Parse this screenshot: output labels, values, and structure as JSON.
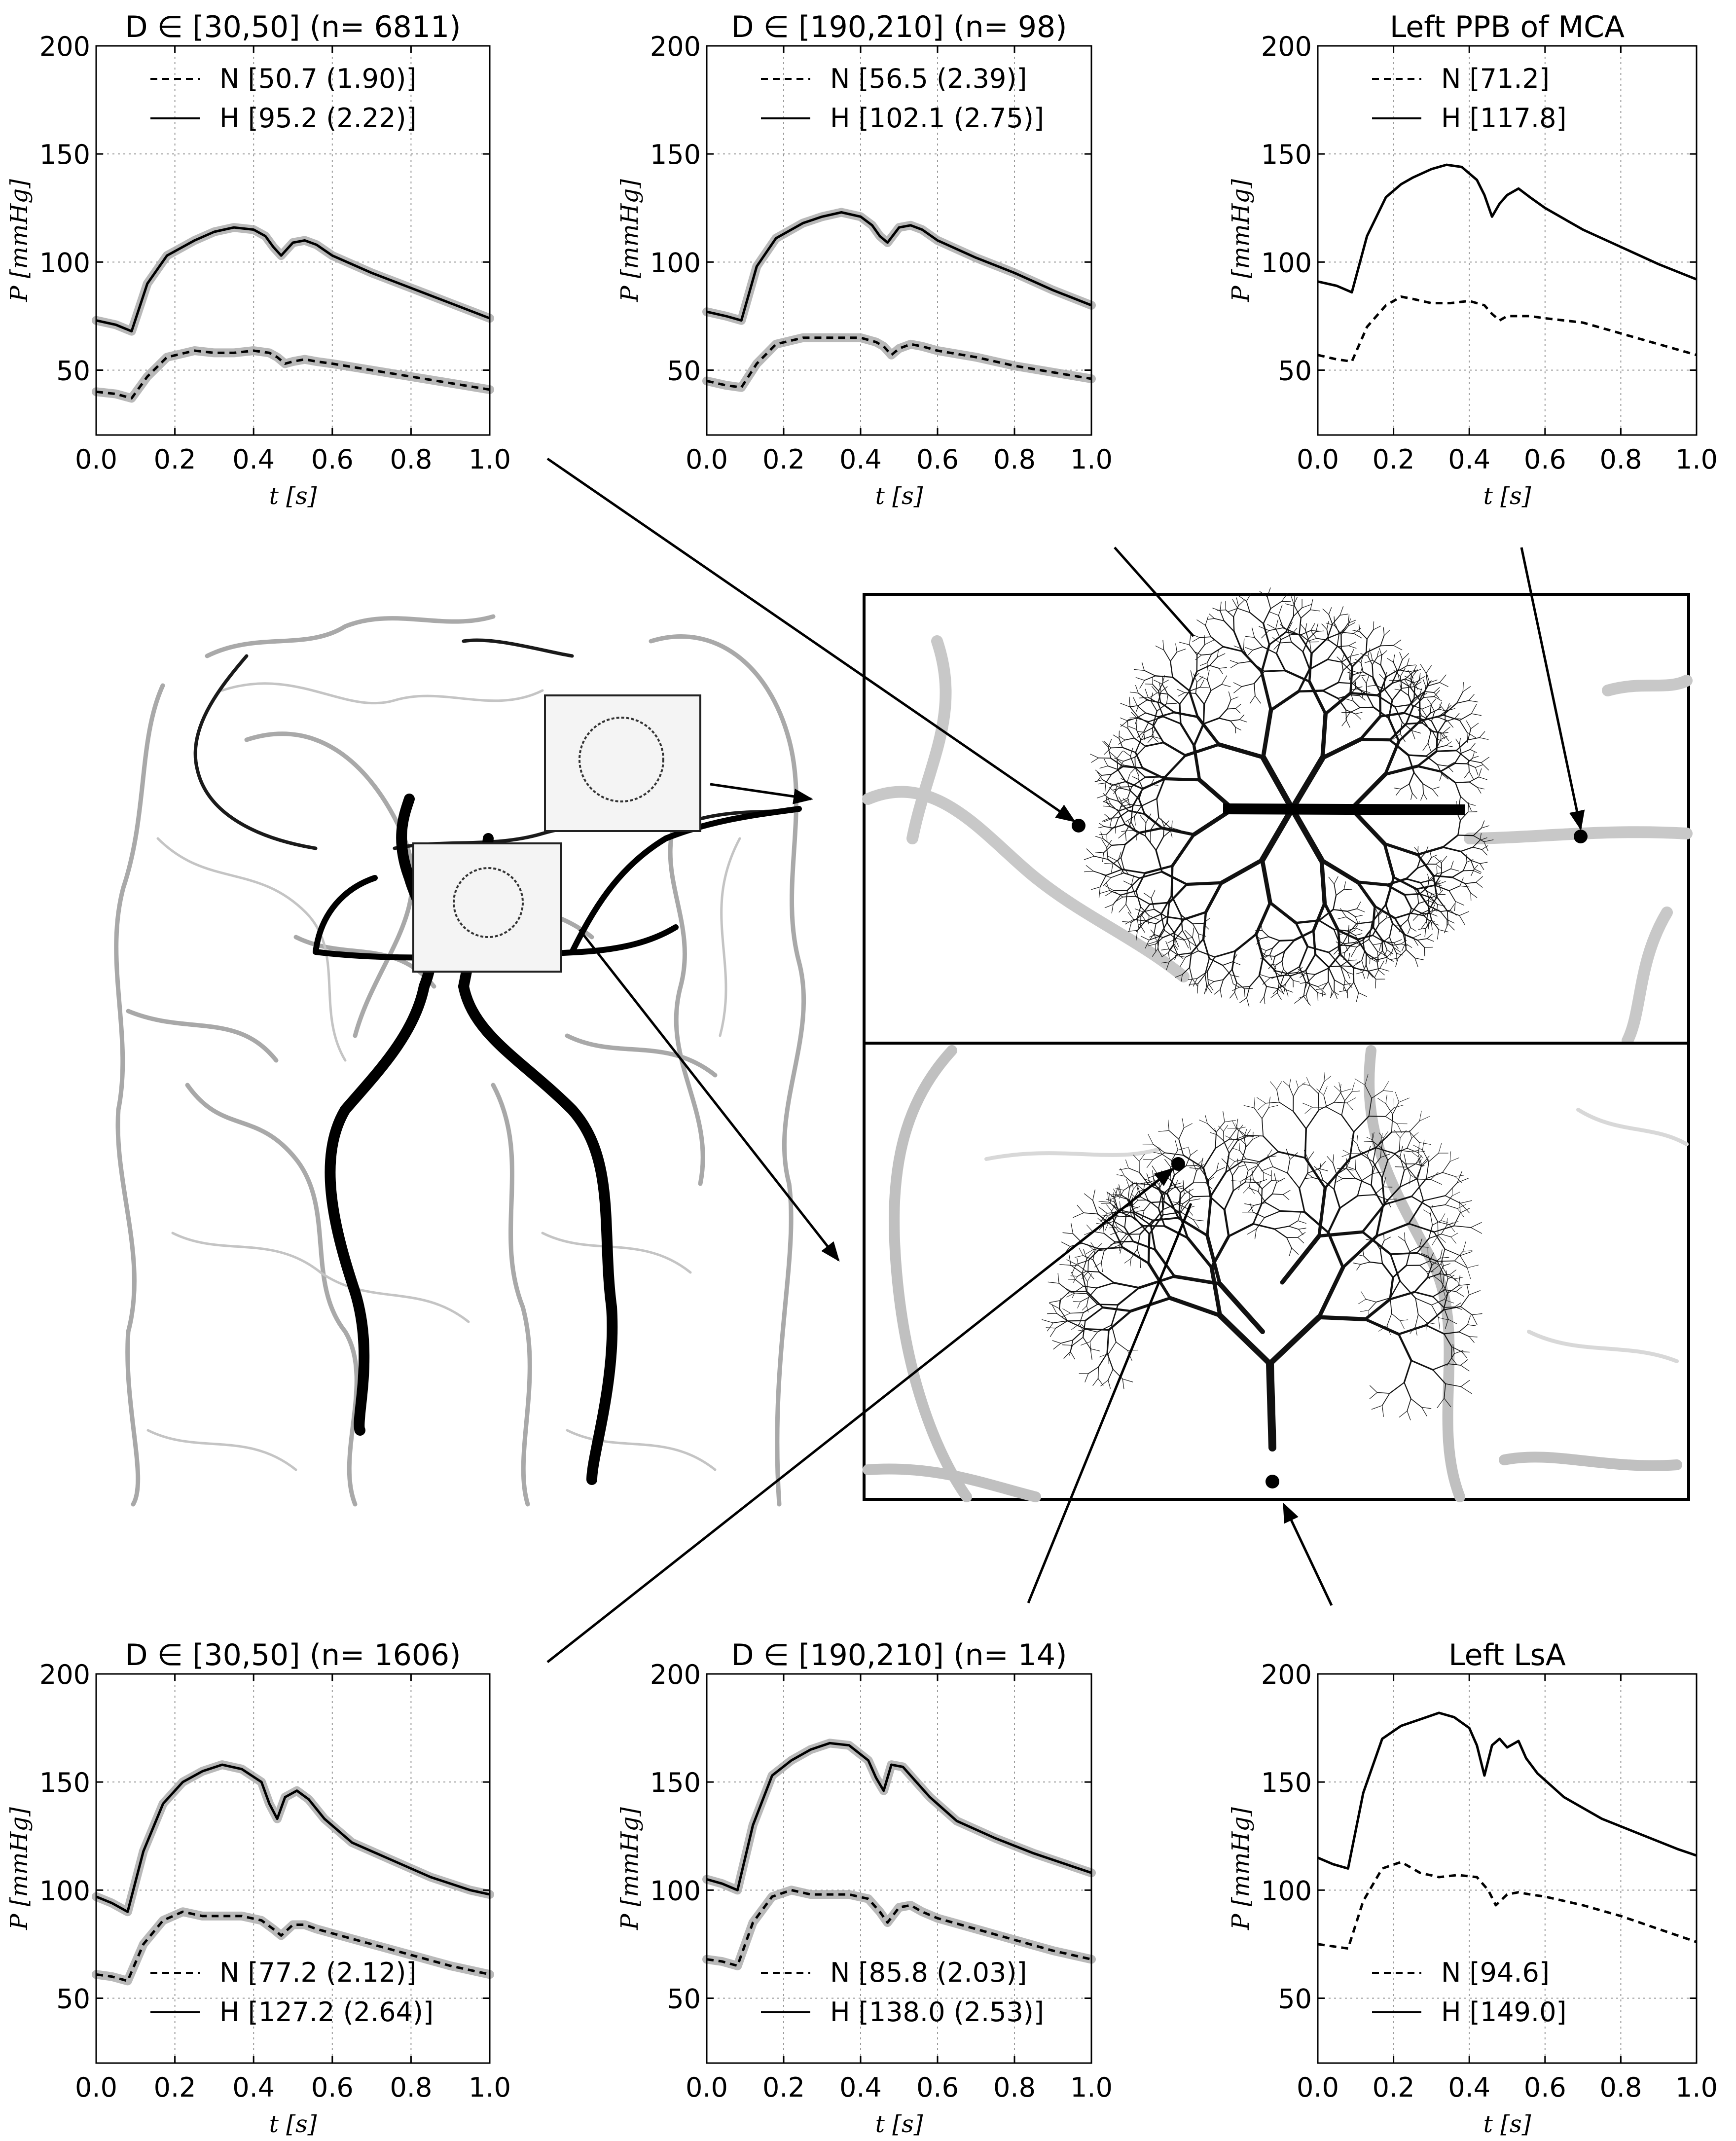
{
  "axis_labels": {
    "x": "t [s]",
    "y": "P [mmHg]"
  },
  "chart_data": [
    {
      "type": "line",
      "title": "D ∈ [30,50] (n= 6811)",
      "xlabel": "t [s]",
      "ylabel": "P [mmHg]",
      "xlim": [
        0.0,
        1.0
      ],
      "ylim": [
        20,
        200
      ],
      "xticks": [
        "0.0",
        "0.2",
        "0.4",
        "0.6",
        "0.8",
        "1.0"
      ],
      "yticks": [
        "50",
        "100",
        "150",
        "200"
      ],
      "grid": true,
      "legend_position": "top",
      "band": true,
      "legend": [
        "N [50.7 (1.90)]",
        "H [95.2 (2.22)]"
      ],
      "series": [
        {
          "name": "N [50.7 (1.90)]",
          "style": "dashed",
          "x": [
            0,
            0.05,
            0.09,
            0.13,
            0.18,
            0.25,
            0.3,
            0.35,
            0.4,
            0.44,
            0.46,
            0.48,
            0.5,
            0.53,
            0.56,
            0.6,
            0.7,
            0.8,
            0.9,
            1.0
          ],
          "y": [
            40,
            39,
            37,
            47,
            56,
            59,
            58,
            58,
            59,
            58,
            56,
            53,
            54,
            55,
            54,
            53,
            50,
            47,
            44,
            41
          ]
        },
        {
          "name": "H [95.2 (2.22)]",
          "style": "solid",
          "x": [
            0,
            0.05,
            0.09,
            0.13,
            0.18,
            0.25,
            0.3,
            0.35,
            0.4,
            0.43,
            0.45,
            0.47,
            0.5,
            0.53,
            0.56,
            0.6,
            0.7,
            0.8,
            0.9,
            1.0
          ],
          "y": [
            73,
            71,
            68,
            90,
            103,
            110,
            114,
            116,
            115,
            112,
            107,
            103,
            109,
            110,
            108,
            103,
            95,
            88,
            81,
            74
          ]
        }
      ]
    },
    {
      "type": "line",
      "title": "D ∈ [190,210] (n= 98)",
      "xlabel": "t [s]",
      "ylabel": "P [mmHg]",
      "xlim": [
        0.0,
        1.0
      ],
      "ylim": [
        20,
        200
      ],
      "xticks": [
        "0.0",
        "0.2",
        "0.4",
        "0.6",
        "0.8",
        "1.0"
      ],
      "yticks": [
        "50",
        "100",
        "150",
        "200"
      ],
      "grid": true,
      "legend_position": "top",
      "band": true,
      "legend": [
        "N [56.5 (2.39)]",
        "H [102.1 (2.75)]"
      ],
      "series": [
        {
          "name": "N [56.5 (2.39)]",
          "style": "dashed",
          "x": [
            0,
            0.05,
            0.09,
            0.13,
            0.18,
            0.25,
            0.3,
            0.35,
            0.4,
            0.44,
            0.46,
            0.48,
            0.5,
            0.53,
            0.56,
            0.6,
            0.7,
            0.8,
            0.9,
            1.0
          ],
          "y": [
            45,
            43,
            42,
            53,
            62,
            65,
            65,
            65,
            65,
            63,
            61,
            57,
            60,
            62,
            61,
            59,
            56,
            52,
            49,
            46
          ]
        },
        {
          "name": "H [102.1 (2.75)]",
          "style": "solid",
          "x": [
            0,
            0.05,
            0.09,
            0.13,
            0.18,
            0.25,
            0.3,
            0.35,
            0.4,
            0.43,
            0.45,
            0.47,
            0.5,
            0.53,
            0.56,
            0.6,
            0.7,
            0.8,
            0.9,
            1.0
          ],
          "y": [
            77,
            75,
            73,
            98,
            111,
            118,
            121,
            123,
            121,
            117,
            112,
            109,
            116,
            117,
            115,
            110,
            102,
            95,
            87,
            80
          ]
        }
      ]
    },
    {
      "type": "line",
      "title": "Left PPB of MCA",
      "xlabel": "t [s]",
      "ylabel": "P [mmHg]",
      "xlim": [
        0.0,
        1.0
      ],
      "ylim": [
        20,
        200
      ],
      "xticks": [
        "0.0",
        "0.2",
        "0.4",
        "0.6",
        "0.8",
        "1.0"
      ],
      "yticks": [
        "50",
        "100",
        "150",
        "200"
      ],
      "grid": true,
      "legend_position": "top",
      "band": false,
      "legend": [
        "N [71.2]",
        "H [117.8]"
      ],
      "series": [
        {
          "name": "N [71.2]",
          "style": "dashed",
          "x": [
            0,
            0.05,
            0.09,
            0.13,
            0.18,
            0.22,
            0.25,
            0.3,
            0.35,
            0.4,
            0.44,
            0.46,
            0.48,
            0.5,
            0.53,
            0.56,
            0.6,
            0.7,
            0.8,
            0.9,
            1.0
          ],
          "y": [
            57,
            55,
            54,
            70,
            80,
            84,
            83,
            81,
            81,
            82,
            80,
            76,
            73,
            75,
            75,
            75,
            74,
            72,
            67,
            62,
            57
          ]
        },
        {
          "name": "H [117.8]",
          "style": "solid",
          "x": [
            0,
            0.05,
            0.09,
            0.13,
            0.18,
            0.22,
            0.25,
            0.3,
            0.34,
            0.38,
            0.42,
            0.44,
            0.46,
            0.48,
            0.5,
            0.53,
            0.56,
            0.6,
            0.7,
            0.8,
            0.9,
            1.0
          ],
          "y": [
            91,
            89,
            86,
            112,
            130,
            136,
            139,
            143,
            145,
            144,
            138,
            131,
            121,
            127,
            131,
            134,
            130,
            125,
            115,
            107,
            99,
            92
          ]
        }
      ]
    },
    {
      "type": "line",
      "title": "D ∈ [30,50] (n= 1606)",
      "xlabel": "t [s]",
      "ylabel": "P [mmHg]",
      "xlim": [
        0.0,
        1.0
      ],
      "ylim": [
        20,
        200
      ],
      "xticks": [
        "0.0",
        "0.2",
        "0.4",
        "0.6",
        "0.8",
        "1.0"
      ],
      "yticks": [
        "50",
        "100",
        "150",
        "200"
      ],
      "grid": true,
      "legend_position": "bottom",
      "band": true,
      "legend": [
        "N [77.2 (2.12)]",
        "H [127.2 (2.64)]"
      ],
      "series": [
        {
          "name": "N [77.2 (2.12)]",
          "style": "dashed",
          "x": [
            0,
            0.04,
            0.08,
            0.12,
            0.17,
            0.22,
            0.27,
            0.32,
            0.37,
            0.42,
            0.45,
            0.47,
            0.5,
            0.53,
            0.56,
            0.6,
            0.7,
            0.8,
            0.9,
            1.0
          ],
          "y": [
            61,
            60,
            58,
            75,
            86,
            90,
            88,
            88,
            88,
            86,
            82,
            79,
            84,
            84,
            82,
            80,
            75,
            70,
            65,
            61
          ]
        },
        {
          "name": "H [127.2 (2.64)]",
          "style": "solid",
          "x": [
            0,
            0.04,
            0.08,
            0.12,
            0.17,
            0.22,
            0.27,
            0.32,
            0.37,
            0.42,
            0.44,
            0.46,
            0.48,
            0.51,
            0.54,
            0.58,
            0.65,
            0.75,
            0.85,
            0.95,
            1.0
          ],
          "y": [
            97,
            94,
            90,
            118,
            140,
            150,
            155,
            158,
            156,
            150,
            140,
            133,
            143,
            146,
            142,
            133,
            122,
            114,
            106,
            100,
            98
          ]
        }
      ]
    },
    {
      "type": "line",
      "title": "D ∈ [190,210] (n= 14)",
      "xlabel": "t [s]",
      "ylabel": "P [mmHg]",
      "xlim": [
        0.0,
        1.0
      ],
      "ylim": [
        20,
        200
      ],
      "xticks": [
        "0.0",
        "0.2",
        "0.4",
        "0.6",
        "0.8",
        "1.0"
      ],
      "yticks": [
        "50",
        "100",
        "150",
        "200"
      ],
      "grid": true,
      "legend_position": "bottom",
      "band": true,
      "legend": [
        "N [85.8 (2.03)]",
        "H [138.0 (2.53)]"
      ],
      "series": [
        {
          "name": "N [85.8 (2.03)]",
          "style": "dashed",
          "x": [
            0,
            0.04,
            0.08,
            0.12,
            0.17,
            0.22,
            0.27,
            0.32,
            0.37,
            0.42,
            0.45,
            0.47,
            0.5,
            0.53,
            0.56,
            0.6,
            0.7,
            0.8,
            0.9,
            1.0
          ],
          "y": [
            68,
            67,
            65,
            85,
            97,
            100,
            98,
            98,
            98,
            96,
            90,
            85,
            92,
            93,
            90,
            87,
            82,
            77,
            72,
            68
          ]
        },
        {
          "name": "H [138.0 (2.53)]",
          "style": "solid",
          "x": [
            0,
            0.04,
            0.08,
            0.12,
            0.17,
            0.22,
            0.27,
            0.32,
            0.37,
            0.42,
            0.44,
            0.46,
            0.48,
            0.51,
            0.54,
            0.58,
            0.65,
            0.75,
            0.85,
            0.95,
            1.0
          ],
          "y": [
            105,
            103,
            100,
            130,
            153,
            160,
            165,
            168,
            167,
            160,
            152,
            146,
            158,
            157,
            151,
            143,
            132,
            124,
            117,
            111,
            108
          ]
        }
      ]
    },
    {
      "type": "line",
      "title": "Left LsA",
      "xlabel": "t [s]",
      "ylabel": "P [mmHg]",
      "xlim": [
        0.0,
        1.0
      ],
      "ylim": [
        20,
        200
      ],
      "xticks": [
        "0.0",
        "0.2",
        "0.4",
        "0.6",
        "0.8",
        "1.0"
      ],
      "yticks": [
        "50",
        "100",
        "150",
        "200"
      ],
      "grid": true,
      "legend_position": "bottom",
      "band": false,
      "legend": [
        "N [94.6]",
        "H [149.0]"
      ],
      "series": [
        {
          "name": "N [94.6]",
          "style": "dashed",
          "x": [
            0,
            0.04,
            0.08,
            0.12,
            0.17,
            0.22,
            0.27,
            0.32,
            0.37,
            0.42,
            0.45,
            0.47,
            0.5,
            0.53,
            0.56,
            0.6,
            0.7,
            0.8,
            0.9,
            1.0
          ],
          "y": [
            75,
            74,
            73,
            95,
            110,
            113,
            108,
            106,
            107,
            106,
            100,
            93,
            98,
            99,
            98,
            97,
            93,
            88,
            82,
            76
          ]
        },
        {
          "name": "H [149.0]",
          "style": "solid",
          "x": [
            0,
            0.04,
            0.08,
            0.12,
            0.17,
            0.22,
            0.27,
            0.32,
            0.36,
            0.4,
            0.42,
            0.44,
            0.46,
            0.48,
            0.5,
            0.53,
            0.55,
            0.58,
            0.65,
            0.75,
            0.85,
            0.95,
            1.0
          ],
          "y": [
            115,
            112,
            110,
            145,
            170,
            176,
            179,
            182,
            180,
            175,
            167,
            153,
            167,
            170,
            166,
            169,
            161,
            154,
            143,
            133,
            126,
            119,
            116
          ]
        }
      ]
    }
  ],
  "anatomy_figure": {
    "description_free": true,
    "colors": {
      "vessel_gray": "#8c8c8c",
      "vessel_light": "#c4c4c4",
      "tree": "#111111"
    }
  }
}
